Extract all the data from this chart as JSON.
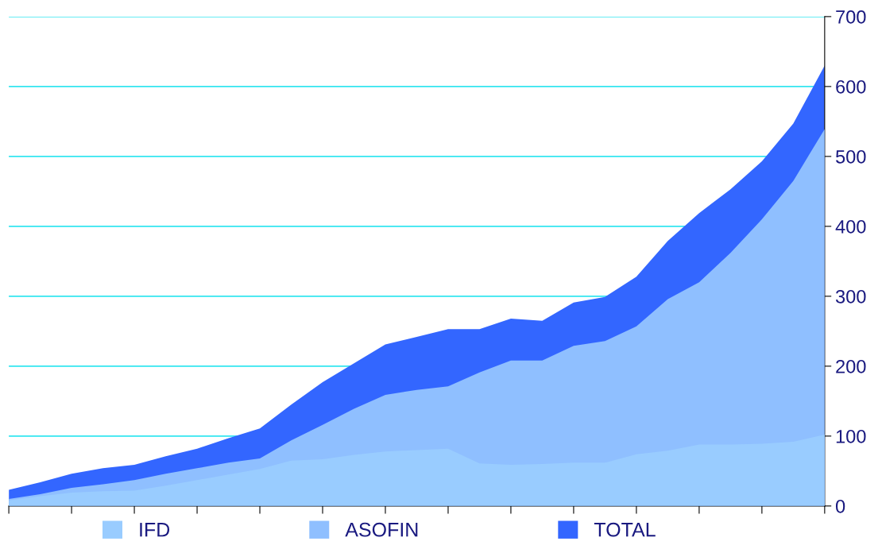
{
  "chart_data": {
    "type": "area",
    "categories": [
      null,
      null,
      null,
      null,
      null,
      null,
      null,
      null,
      null,
      null,
      null,
      null,
      null,
      null,
      null,
      null,
      null,
      null,
      null,
      null,
      null,
      null,
      null,
      null,
      null,
      null,
      null
    ],
    "series": [
      {
        "name": "TOTAL",
        "color": "#3366ff",
        "values": [
          23,
          34,
          46,
          54,
          59,
          71,
          82,
          97,
          111,
          145,
          177,
          204,
          231,
          242,
          253,
          253,
          268,
          265,
          291,
          299,
          328,
          379,
          419,
          453,
          493,
          547,
          630
        ]
      },
      {
        "name": "ASOFIN",
        "color": "#8fbfff",
        "values": [
          10,
          17,
          26,
          31,
          37,
          46,
          54,
          62,
          68,
          94,
          116,
          139,
          159,
          166,
          171,
          191,
          208,
          208,
          229,
          236,
          257,
          296,
          320,
          362,
          410,
          465,
          539
        ]
      },
      {
        "name": "IFD",
        "color": "#99ccff",
        "values": [
          8,
          14,
          19,
          21,
          22,
          29,
          37,
          45,
          53,
          65,
          67,
          73,
          78,
          80,
          82,
          61,
          59,
          60,
          62,
          62,
          74,
          79,
          88,
          88,
          89,
          92,
          102
        ]
      }
    ],
    "ylim": [
      0,
      700
    ],
    "yticks": [
      0,
      100,
      200,
      300,
      400,
      500,
      600,
      700
    ],
    "grid": "y",
    "legend": "bottom"
  }
}
